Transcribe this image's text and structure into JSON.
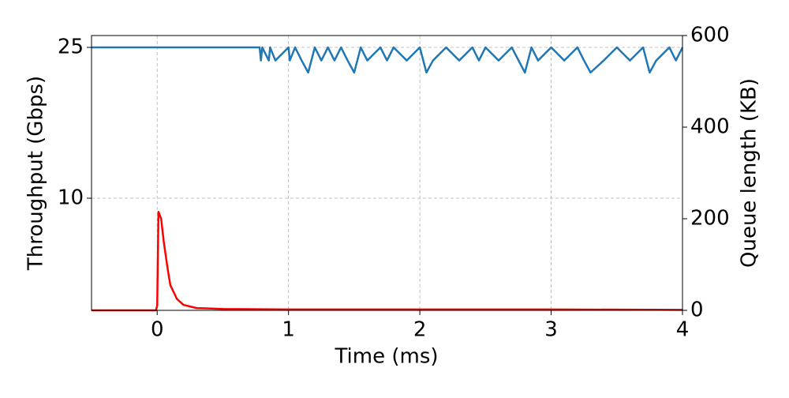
{
  "chart_data": {
    "type": "line",
    "xlabel": "Time (ms)",
    "ylabel": "Throughput (Gbps)",
    "y2label": "Queue length (KB)",
    "xlim": [
      -0.5,
      4
    ],
    "xticks": [
      0,
      1,
      2,
      3,
      4
    ],
    "ylim": [
      -1.15,
      26.18
    ],
    "yticks": [
      10,
      25
    ],
    "y2lim": [
      0,
      600
    ],
    "y2ticks": [
      0,
      200,
      400,
      600
    ],
    "grid": true,
    "series": [
      {
        "color": "#1f77b4",
        "axis": "y",
        "x": [
          -0.5,
          0.78,
          0.79,
          0.8,
          0.85,
          0.86,
          0.9,
          1.0,
          1.01,
          1.05,
          1.1,
          1.15,
          1.2,
          1.25,
          1.3,
          1.35,
          1.4,
          1.45,
          1.5,
          1.55,
          1.6,
          1.7,
          1.75,
          1.8,
          1.9,
          2.0,
          2.05,
          2.1,
          2.2,
          2.3,
          2.4,
          2.45,
          2.5,
          2.6,
          2.7,
          2.8,
          2.85,
          2.9,
          3.0,
          3.1,
          3.2,
          3.25,
          3.3,
          3.4,
          3.5,
          3.6,
          3.7,
          3.75,
          3.8,
          3.9,
          3.95,
          4.0
        ],
        "values": [
          25,
          25,
          23.7,
          25,
          23.7,
          25,
          23.7,
          25,
          23.7,
          25,
          23.7,
          22.5,
          25,
          23.7,
          25,
          23.7,
          25,
          23.7,
          22.5,
          25,
          23.7,
          25,
          23.7,
          25,
          23.7,
          25,
          22.5,
          23.7,
          25,
          23.7,
          25,
          23.7,
          25,
          23.7,
          25,
          22.5,
          25,
          23.7,
          25,
          23.7,
          25,
          23.7,
          22.5,
          23.7,
          25,
          23.7,
          25,
          22.5,
          23.7,
          25,
          23.7,
          25
        ]
      },
      {
        "color": "#ff0000",
        "axis": "y2",
        "x": [
          -0.5,
          -0.01,
          0.0,
          0.01,
          0.03,
          0.05,
          0.08,
          0.1,
          0.15,
          0.2,
          0.3,
          0.5,
          1.0,
          2.0,
          3.0,
          4.0
        ],
        "values": [
          0,
          0,
          10,
          215,
          200,
          150,
          90,
          55,
          25,
          12,
          5,
          3,
          2,
          2,
          2,
          1
        ]
      }
    ]
  }
}
